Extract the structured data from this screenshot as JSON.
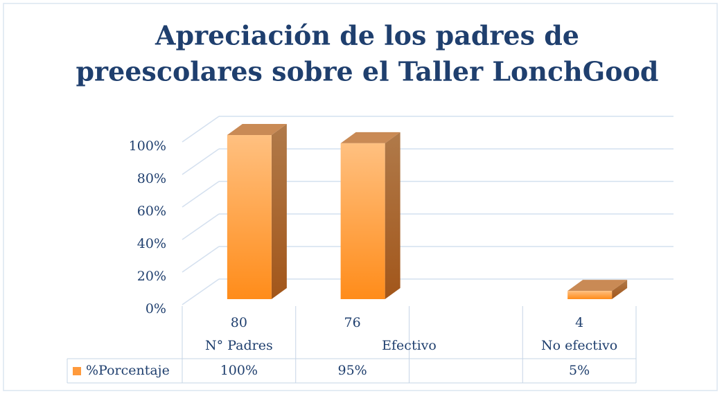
{
  "chart_data": {
    "type": "bar3d",
    "title": [
      "Apreciación de los padres de",
      "preescolares sobre el Taller LonchGood"
    ],
    "categories": [
      "N° Padres",
      "Efectivo",
      null,
      "No efectivo"
    ],
    "counts": [
      "80",
      "76",
      null,
      "4"
    ],
    "series": [
      {
        "name": "%Porcentaje",
        "color": "#ff9a3c",
        "values": [
          100,
          95,
          null,
          5
        ],
        "value_labels": [
          "100%",
          "95%",
          null,
          "5%"
        ]
      }
    ],
    "ylim": [
      0,
      100
    ],
    "yticks": [
      {
        "value": 0,
        "label": "0%"
      },
      {
        "value": 20,
        "label": "20%"
      },
      {
        "value": 40,
        "label": "40%"
      },
      {
        "value": 60,
        "label": "60%"
      },
      {
        "value": 80,
        "label": "80%"
      },
      {
        "value": 100,
        "label": "100%"
      }
    ],
    "grid": true
  }
}
